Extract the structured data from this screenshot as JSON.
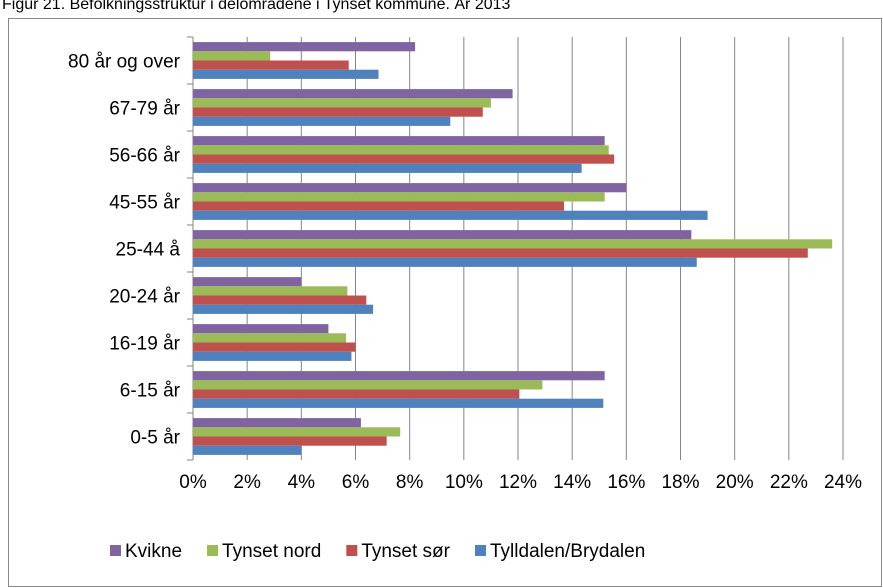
{
  "chart_data": {
    "type": "bar",
    "orientation": "horizontal",
    "title": "Figur 21. Befolkningsstruktur i delområdene i Tynset kommune. År 2013",
    "categories": [
      "80 år og over",
      "67-79 år",
      "56-66 år",
      "45-55 år",
      "25-44 å",
      "20-24 år",
      "16-19 år",
      "6-15 år",
      "0-5 år"
    ],
    "series": [
      {
        "name": "Kvikne",
        "color": "#8064a2",
        "values": [
          8.2,
          11.8,
          15.2,
          16.0,
          18.4,
          4.0,
          5.0,
          15.2,
          6.2
        ]
      },
      {
        "name": "Tynset nord",
        "color": "#9bbb59",
        "values": [
          2.85,
          11.0,
          15.35,
          15.2,
          23.6,
          5.7,
          5.65,
          12.9,
          7.65
        ]
      },
      {
        "name": "Tynset sør",
        "color": "#c0504d",
        "values": [
          5.75,
          10.7,
          15.55,
          13.7,
          22.7,
          6.4,
          6.0,
          12.05,
          7.15
        ]
      },
      {
        "name": "Tylldalen/Brydalen",
        "color": "#4f81bd",
        "values": [
          6.85,
          9.5,
          14.35,
          19.0,
          18.6,
          6.65,
          5.85,
          15.15,
          4.0
        ]
      }
    ],
    "xlim": [
      0,
      24
    ],
    "xticks": [
      {
        "value": 0,
        "label": "0%"
      },
      {
        "value": 2,
        "label": "2%"
      },
      {
        "value": 4,
        "label": "4%"
      },
      {
        "value": 6,
        "label": "6%"
      },
      {
        "value": 8,
        "label": "8%"
      },
      {
        "value": 10,
        "label": "10%"
      },
      {
        "value": 12,
        "label": "12%"
      },
      {
        "value": 14,
        "label": "14%"
      },
      {
        "value": 16,
        "label": "16%"
      },
      {
        "value": 18,
        "label": "18%"
      },
      {
        "value": 20,
        "label": "20%"
      },
      {
        "value": 22,
        "label": "22%"
      },
      {
        "value": 24,
        "label": "24%"
      }
    ],
    "grid": true,
    "legend": "bottom"
  }
}
